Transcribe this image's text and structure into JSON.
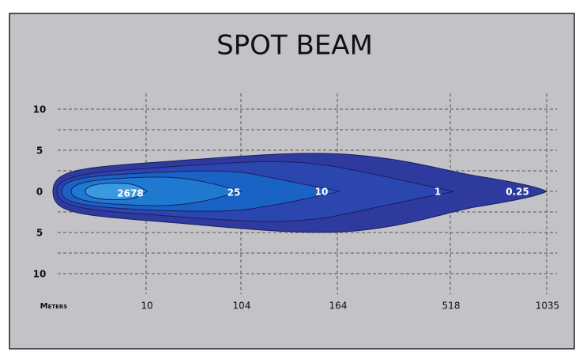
{
  "title": "SPOT BEAM",
  "y_labels": [
    "10",
    "5",
    "0",
    "5",
    "10"
  ],
  "x_axis_label": "Meters",
  "x_labels": [
    "10",
    "104",
    "164",
    "518",
    "1035"
  ],
  "contour_labels": [
    "2678",
    "25",
    "10",
    "1",
    "0.25"
  ]
}
